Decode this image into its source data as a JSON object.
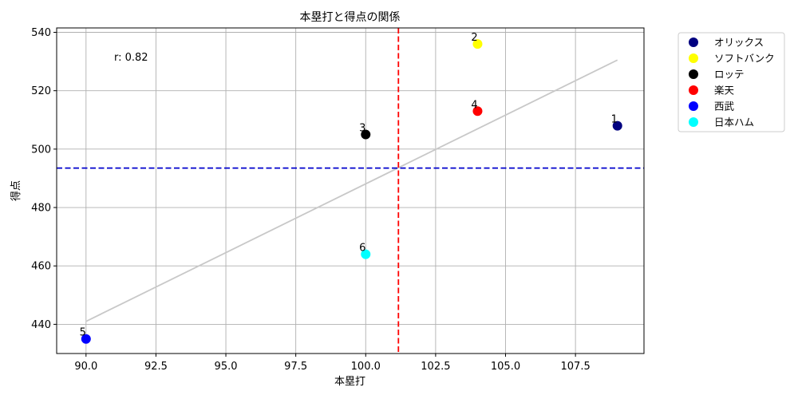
{
  "chart_data": {
    "type": "scatter",
    "title": "本塁打と得点の関係",
    "xlabel": "本塁打",
    "ylabel": "得点",
    "xlim": [
      88.95,
      109.95
    ],
    "ylim": [
      430,
      541.5
    ],
    "xticks": [
      "90.0",
      "92.5",
      "95.0",
      "97.5",
      "100.0",
      "102.5",
      "105.0",
      "107.5"
    ],
    "xtick_values": [
      90,
      92.5,
      95,
      97.5,
      100,
      102.5,
      105,
      107.5
    ],
    "yticks": [
      "440",
      "460",
      "480",
      "500",
      "520",
      "540"
    ],
    "ytick_values": [
      440,
      460,
      480,
      500,
      520,
      540
    ],
    "grid": true,
    "legend_position": "outside-top-right",
    "points": [
      {
        "name": "オリックス",
        "label": "1",
        "x": 109,
        "y": 508,
        "color": "#000080"
      },
      {
        "name": "ソフトバンク",
        "label": "2",
        "x": 104,
        "y": 536,
        "color": "#ffff00"
      },
      {
        "name": "ロッテ",
        "label": "3",
        "x": 100,
        "y": 505,
        "color": "#000000"
      },
      {
        "name": "楽天",
        "label": "4",
        "x": 104,
        "y": 513,
        "color": "#ff0000"
      },
      {
        "name": "西武",
        "label": "5",
        "x": 90,
        "y": 435,
        "color": "#0000ff"
      },
      {
        "name": "日本ハム",
        "label": "6",
        "x": 100,
        "y": 464,
        "color": "#00ffff"
      }
    ],
    "mean_x": 101.17,
    "mean_y": 493.5,
    "mean_x_color": "#ff0000",
    "mean_y_color": "#0000cc",
    "trendline": {
      "x": [
        90,
        109
      ],
      "y": [
        441,
        530.5
      ],
      "color": "#c8c8c8"
    },
    "correlation_text": "r: 0.82"
  }
}
